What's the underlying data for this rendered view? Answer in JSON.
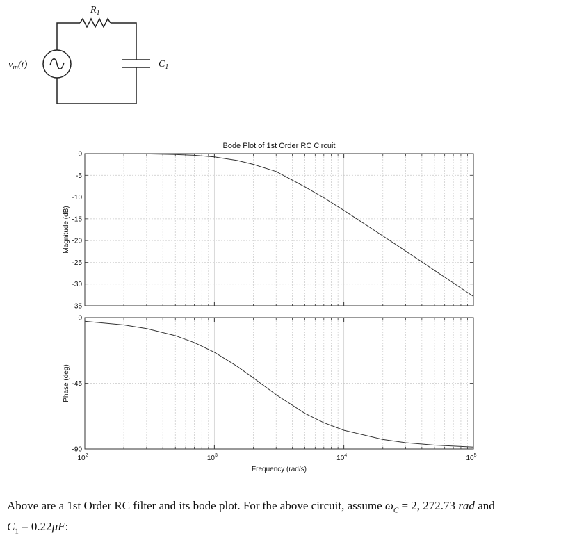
{
  "circuit": {
    "source_label": "v_in(t)",
    "resistor_label": "R1",
    "capacitor_label": "C1"
  },
  "chart_data": [
    {
      "type": "line",
      "title": "Bode Plot of 1st Order RC Circuit",
      "xlabel": "",
      "ylabel": "Magnitude (dB)",
      "xscale": "log",
      "xlim": [
        100,
        100000
      ],
      "ylim": [
        -35,
        0
      ],
      "yticks": [
        0,
        -5,
        -10,
        -15,
        -20,
        -25,
        -30,
        -35
      ],
      "grid": true,
      "series": [
        {
          "x": [
            100,
            200,
            300,
            500,
            700,
            1000,
            1500,
            2000,
            2272.73,
            3000,
            5000,
            7000,
            10000,
            20000,
            30000,
            50000,
            100000
          ],
          "values": [
            -0.01,
            -0.03,
            -0.07,
            -0.2,
            -0.38,
            -0.76,
            -1.58,
            -2.48,
            -3.01,
            -4.12,
            -7.64,
            -10.15,
            -13.07,
            -18.94,
            -22.42,
            -26.83,
            -32.85
          ]
        }
      ]
    },
    {
      "type": "line",
      "title": "",
      "xlabel": "Frequency (rad/s)",
      "ylabel": "Phase (deg)",
      "xscale": "log",
      "xlim": [
        100,
        100000
      ],
      "ylim": [
        -90,
        0
      ],
      "yticks": [
        0,
        -45,
        -90
      ],
      "xtick_labels": [
        "10^2",
        "10^3",
        "10^4",
        "10^5"
      ],
      "grid": true,
      "series": [
        {
          "x": [
            100,
            200,
            300,
            500,
            700,
            1000,
            1500,
            2000,
            2272.73,
            3000,
            5000,
            7000,
            10000,
            20000,
            30000,
            50000,
            100000
          ],
          "values": [
            -2.5,
            -5.0,
            -7.5,
            -12.4,
            -17.1,
            -23.7,
            -33.4,
            -41.3,
            -45.0,
            -52.8,
            -65.6,
            -72.0,
            -77.2,
            -83.5,
            -85.7,
            -87.4,
            -88.7
          ]
        }
      ]
    }
  ],
  "caption": {
    "line1": "Above are a 1st Order RC filter and its bode plot. For the above circuit, assume ω_C = 2,272.73 rad and",
    "line2": "C1 = 0.22μF:"
  }
}
